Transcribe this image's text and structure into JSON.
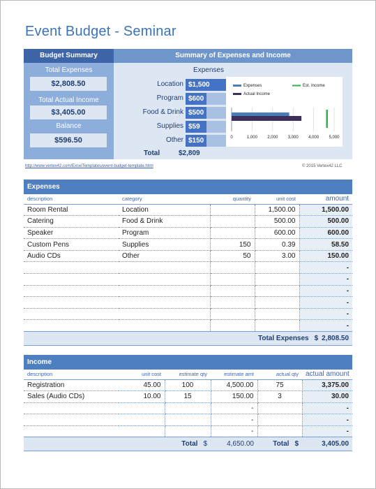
{
  "title": "Event Budget - Seminar",
  "summary": {
    "left_header": "Budget Summary",
    "right_header": "Summary of Expenses and Income",
    "total_expenses_label": "Total Expenses",
    "total_expenses_value": "$2,808.50",
    "total_actual_income_label": "Total Actual Income",
    "total_actual_income_value": "$3,405.00",
    "balance_label": "Balance",
    "balance_value": "$596.50",
    "expenses_title": "Expenses",
    "expense_bars": [
      {
        "label": "Location",
        "value_text": "$1,500",
        "value": 1500
      },
      {
        "label": "Program",
        "value_text": "$600",
        "value": 600
      },
      {
        "label": "Food & Drink",
        "value_text": "$500",
        "value": 500
      },
      {
        "label": "Supplies",
        "value_text": "$59",
        "value": 59
      },
      {
        "label": "Other",
        "value_text": "$150",
        "value": 150
      }
    ],
    "expenses_bar_max": 1500,
    "total_label": "Total",
    "total_value": "$2,809"
  },
  "chart_data": {
    "type": "bar",
    "orientation": "horizontal",
    "series": [
      {
        "name": "Expenses",
        "values": [
          2808.5
        ],
        "color": "#4a7ebb"
      },
      {
        "name": "Actual Income",
        "values": [
          3405
        ],
        "color": "#3d2f5a"
      },
      {
        "name": "Est. Income",
        "values": [
          4650
        ],
        "color": "#2db34a",
        "style": "marker"
      }
    ],
    "xlim": [
      0,
      5000
    ],
    "x_ticks": [
      "0",
      "1,000",
      "2,000",
      "3,000",
      "4,000",
      "5,000"
    ],
    "grid": true,
    "legend": "top"
  },
  "footer": {
    "link": "http://www.vertex42.com/ExcelTemplates/event-budget-template.html",
    "copyright": "© 2015 Vertex42 LLC"
  },
  "expenses": {
    "section_title": "Expenses",
    "headers": {
      "description": "description",
      "category": "category",
      "quantity": "quantity",
      "unit_cost": "unit cost",
      "amount": "amount"
    },
    "rows": [
      {
        "description": "Room Rental",
        "category": "Location",
        "quantity": "",
        "unit_cost": "1,500.00",
        "amount": "1,500.00"
      },
      {
        "description": "Catering",
        "category": "Food & Drink",
        "quantity": "",
        "unit_cost": "500.00",
        "amount": "500.00"
      },
      {
        "description": "Speaker",
        "category": "Program",
        "quantity": "",
        "unit_cost": "600.00",
        "amount": "600.00"
      },
      {
        "description": "Custom Pens",
        "category": "Supplies",
        "quantity": "150",
        "unit_cost": "0.39",
        "amount": "58.50"
      },
      {
        "description": "Audio CDs",
        "category": "Other",
        "quantity": "50",
        "unit_cost": "3.00",
        "amount": "150.00"
      },
      {
        "description": "",
        "category": "",
        "quantity": "",
        "unit_cost": "",
        "amount": "-"
      },
      {
        "description": "",
        "category": "",
        "quantity": "",
        "unit_cost": "",
        "amount": "-"
      },
      {
        "description": "",
        "category": "",
        "quantity": "",
        "unit_cost": "",
        "amount": "-"
      },
      {
        "description": "",
        "category": "",
        "quantity": "",
        "unit_cost": "",
        "amount": "-"
      },
      {
        "description": "",
        "category": "",
        "quantity": "",
        "unit_cost": "",
        "amount": "-"
      },
      {
        "description": "",
        "category": "",
        "quantity": "",
        "unit_cost": "",
        "amount": "-"
      }
    ],
    "total_label": "Total Expenses",
    "total_currency": "$",
    "total_value": "2,808.50"
  },
  "income": {
    "section_title": "Income",
    "headers": {
      "description": "description",
      "unit_cost": "unit cost",
      "estimate_qty": "estimate qty",
      "estimate_amt": "estimate amt",
      "actual_qty": "actual qty",
      "actual_amount": "actual amount"
    },
    "rows": [
      {
        "description": "Registration",
        "unit_cost": "45.00",
        "estimate_qty": "100",
        "estimate_amt": "4,500.00",
        "actual_qty": "75",
        "actual_amount": "3,375.00"
      },
      {
        "description": "Sales (Audio CDs)",
        "unit_cost": "10.00",
        "estimate_qty": "15",
        "estimate_amt": "150.00",
        "actual_qty": "3",
        "actual_amount": "30.00"
      },
      {
        "description": "",
        "unit_cost": "",
        "estimate_qty": "",
        "estimate_amt": "-",
        "actual_qty": "",
        "actual_amount": "-"
      },
      {
        "description": "",
        "unit_cost": "",
        "estimate_qty": "",
        "estimate_amt": "-",
        "actual_qty": "",
        "actual_amount": "-"
      },
      {
        "description": "",
        "unit_cost": "",
        "estimate_qty": "",
        "estimate_amt": "-",
        "actual_qty": "",
        "actual_amount": "-"
      }
    ],
    "total_label": "Total",
    "total_currency": "$",
    "estimate_total": "4,650.00",
    "actual_total_label": "Total",
    "actual_total_currency": "$",
    "actual_total": "3,405.00"
  }
}
